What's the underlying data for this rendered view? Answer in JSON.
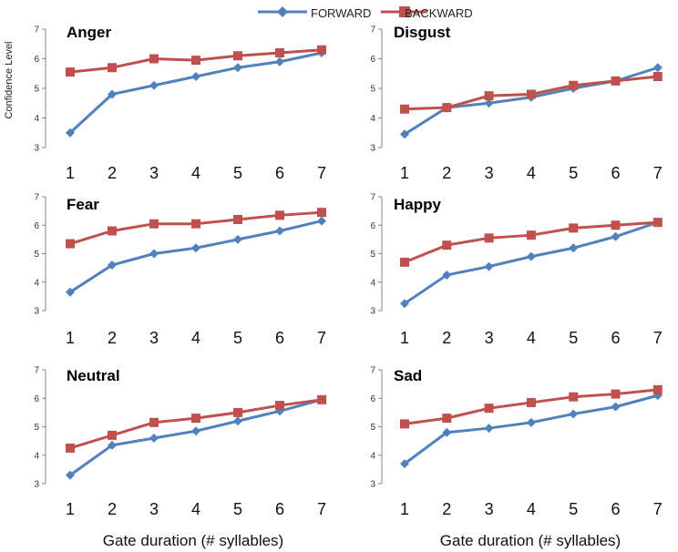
{
  "legend": {
    "forward": "FORWARD",
    "backward": "BACKWARD"
  },
  "labels": {
    "ylabel": "Confidence Level",
    "xlabel_left": "Gate duration (# syllables)",
    "xlabel_right": "Gate duration (# syllables)"
  },
  "colors": {
    "forward": "#4F81BD",
    "backward": "#C0504D",
    "axis": "#868686"
  },
  "chart_data": [
    {
      "type": "line",
      "title": "Anger",
      "categories": [
        "1",
        "2",
        "3",
        "4",
        "5",
        "6",
        "7"
      ],
      "ylim": [
        3,
        7
      ],
      "yticks": [
        "3",
        "4",
        "5",
        "6",
        "7"
      ],
      "series": [
        {
          "name": "FORWARD",
          "values": [
            3.5,
            4.8,
            5.1,
            5.4,
            5.7,
            5.9,
            6.2
          ]
        },
        {
          "name": "BACKWARD",
          "values": [
            5.55,
            5.7,
            6.0,
            5.95,
            6.1,
            6.2,
            6.3
          ]
        }
      ]
    },
    {
      "type": "line",
      "title": "Disgust",
      "categories": [
        "1",
        "2",
        "3",
        "4",
        "5",
        "6",
        "7"
      ],
      "ylim": [
        3,
        7
      ],
      "yticks": [
        "3",
        "4",
        "5",
        "6",
        "7"
      ],
      "series": [
        {
          "name": "FORWARD",
          "values": [
            3.45,
            4.35,
            4.5,
            4.7,
            5.0,
            5.25,
            5.7
          ]
        },
        {
          "name": "BACKWARD",
          "values": [
            4.3,
            4.35,
            4.75,
            4.8,
            5.1,
            5.25,
            5.4
          ]
        }
      ]
    },
    {
      "type": "line",
      "title": "Fear",
      "categories": [
        "1",
        "2",
        "3",
        "4",
        "5",
        "6",
        "7"
      ],
      "ylim": [
        3,
        7
      ],
      "yticks": [
        "3",
        "4",
        "5",
        "6",
        "7"
      ],
      "series": [
        {
          "name": "FORWARD",
          "values": [
            3.65,
            4.6,
            5.0,
            5.2,
            5.5,
            5.8,
            6.15
          ]
        },
        {
          "name": "BACKWARD",
          "values": [
            5.35,
            5.8,
            6.05,
            6.05,
            6.2,
            6.35,
            6.45
          ]
        }
      ]
    },
    {
      "type": "line",
      "title": "Happy",
      "categories": [
        "1",
        "2",
        "3",
        "4",
        "5",
        "6",
        "7"
      ],
      "ylim": [
        3,
        7
      ],
      "yticks": [
        "3",
        "4",
        "5",
        "6",
        "7"
      ],
      "series": [
        {
          "name": "FORWARD",
          "values": [
            3.25,
            4.25,
            4.55,
            4.9,
            5.2,
            5.6,
            6.1
          ]
        },
        {
          "name": "BACKWARD",
          "values": [
            4.7,
            5.3,
            5.55,
            5.65,
            5.9,
            6.0,
            6.1
          ]
        }
      ]
    },
    {
      "type": "line",
      "title": "Neutral",
      "categories": [
        "1",
        "2",
        "3",
        "4",
        "5",
        "6",
        "7"
      ],
      "ylim": [
        3,
        7
      ],
      "yticks": [
        "3",
        "4",
        "5",
        "6",
        "7"
      ],
      "series": [
        {
          "name": "FORWARD",
          "values": [
            3.3,
            4.35,
            4.6,
            4.85,
            5.2,
            5.55,
            5.95
          ]
        },
        {
          "name": "BACKWARD",
          "values": [
            4.25,
            4.7,
            5.15,
            5.3,
            5.5,
            5.75,
            5.95
          ]
        }
      ]
    },
    {
      "type": "line",
      "title": "Sad",
      "categories": [
        "1",
        "2",
        "3",
        "4",
        "5",
        "6",
        "7"
      ],
      "ylim": [
        3,
        7
      ],
      "yticks": [
        "3",
        "4",
        "5",
        "6",
        "7"
      ],
      "series": [
        {
          "name": "FORWARD",
          "values": [
            3.7,
            4.8,
            4.95,
            5.15,
            5.45,
            5.7,
            6.1
          ]
        },
        {
          "name": "BACKWARD",
          "values": [
            5.1,
            5.3,
            5.65,
            5.85,
            6.05,
            6.15,
            6.3
          ]
        }
      ]
    }
  ]
}
